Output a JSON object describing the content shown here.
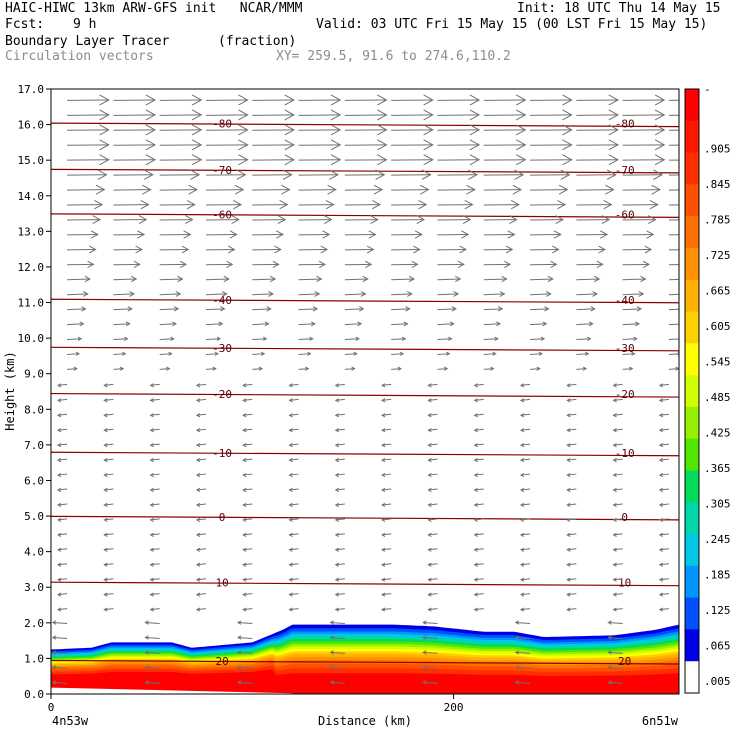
{
  "header": {
    "line1_left": "HAIC-HIWC 13km ARW-GFS init   NCAR/MMM",
    "line1_right": "Init: 18 UTC Thu 14 May 15",
    "fcst_label": "Fcst:",
    "fcst_value": "9 h",
    "valid": "Valid: 03 UTC Fri 15 May 15 (00 LST Fri 15 May 15)",
    "field_name": "Boundary Layer Tracer",
    "field_units": "(fraction)",
    "overlay_name": "Circulation vectors",
    "xy_text": "XY= 259.5, 91.6 to 274.6,110.2"
  },
  "chart_data": {
    "type": "heatmap",
    "title": "Boundary Layer Tracer",
    "xlabel": "Distance (km)",
    "ylabel": "Height (km)",
    "xlim": [
      0,
      312
    ],
    "ylim": [
      0,
      17
    ],
    "x_ticks": [
      {
        "value": 0,
        "label": "0"
      },
      {
        "value": 200,
        "label": "200"
      }
    ],
    "x_end_labels": [
      "4n53w",
      "6n51w"
    ],
    "y_ticks": [
      "0.0",
      "1.0",
      "2.0",
      "3.0",
      "4.0",
      "5.0",
      "6.0",
      "7.0",
      "8.0",
      "9.0",
      "10.0",
      "11.0",
      "12.0",
      "13.0",
      "14.0",
      "15.0",
      "16.0",
      "17.0"
    ],
    "tracer_top_profile": {
      "x": [
        0,
        20,
        30,
        60,
        70,
        100,
        115,
        120,
        140,
        170,
        190,
        215,
        230,
        245,
        280,
        300,
        312
      ],
      "height": [
        1.25,
        1.3,
        1.45,
        1.45,
        1.3,
        1.45,
        1.8,
        1.95,
        1.95,
        1.95,
        1.9,
        1.75,
        1.75,
        1.6,
        1.65,
        1.8,
        1.95
      ]
    },
    "isotherms": [
      {
        "value": 20,
        "label": "20",
        "height": 0.9
      },
      {
        "value": 10,
        "label": "10",
        "height": 3.1
      },
      {
        "value": 0,
        "label": "0",
        "height": 4.95
      },
      {
        "value": -10,
        "label": "-10",
        "height": 6.75
      },
      {
        "value": -20,
        "label": "-20",
        "height": 8.4
      },
      {
        "value": -30,
        "label": "-30",
        "height": 9.7
      },
      {
        "value": -40,
        "label": "-40",
        "height": 11.05
      },
      {
        "value": -60,
        "label": "-60",
        "height": 13.45
      },
      {
        "value": -70,
        "label": "-70",
        "height": 14.7
      },
      {
        "value": -80,
        "label": "-80",
        "height": 16.0
      }
    ],
    "colorbar": {
      "labels": [
        "-",
        ".905",
        ".845",
        ".785",
        ".725",
        ".665",
        ".605",
        ".545",
        ".485",
        ".425",
        ".365",
        ".305",
        ".245",
        ".185",
        ".125",
        ".065",
        ".005"
      ],
      "colors": [
        "#ff0000",
        "#ff1800",
        "#ff3000",
        "#ff5000",
        "#ff7000",
        "#ff9000",
        "#ffb000",
        "#ffd000",
        "#ffff00",
        "#d2ff00",
        "#96f000",
        "#50e600",
        "#00dc5a",
        "#00d7aa",
        "#00c8e6",
        "#0096ff",
        "#0050ff",
        "#0000e6",
        "#ffffff"
      ],
      "top_color": "#ff0000"
    },
    "vectors": {
      "upper_levels": "eastward, strongest 14-16 km",
      "mid_levels": "weak westward",
      "boundary_layer": "westward"
    }
  }
}
